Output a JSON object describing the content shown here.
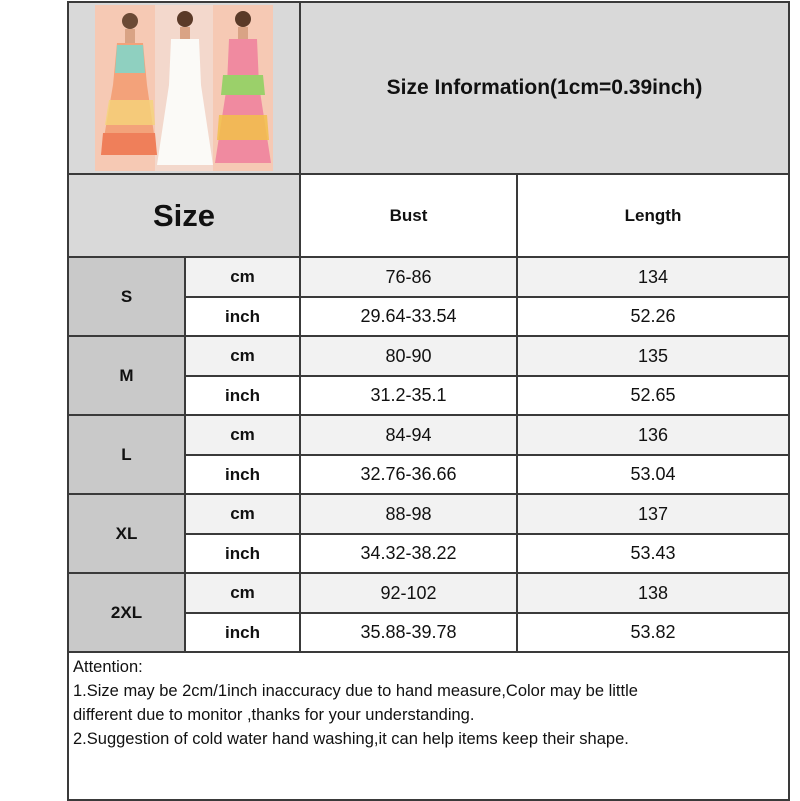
{
  "title": "Size Information(1cm=0.39inch)",
  "size_header": "Size",
  "columns": [
    "Bust",
    "Length"
  ],
  "units": {
    "cm": "cm",
    "inch": "inch"
  },
  "rows": [
    {
      "size": "S",
      "cm": {
        "bust": "76-86",
        "length": "134"
      },
      "inch": {
        "bust": "29.64-33.54",
        "length": "52.26"
      }
    },
    {
      "size": "M",
      "cm": {
        "bust": "80-90",
        "length": "135"
      },
      "inch": {
        "bust": "31.2-35.1",
        "length": "52.65"
      }
    },
    {
      "size": "L",
      "cm": {
        "bust": "84-94",
        "length": "136"
      },
      "inch": {
        "bust": "32.76-36.66",
        "length": "53.04"
      }
    },
    {
      "size": "XL",
      "cm": {
        "bust": "88-98",
        "length": "137"
      },
      "inch": {
        "bust": "34.32-38.22",
        "length": "53.43"
      }
    },
    {
      "size": "2XL",
      "cm": {
        "bust": "92-102",
        "length": "138"
      },
      "inch": {
        "bust": "35.88-39.78",
        "length": "53.82"
      }
    }
  ],
  "attention": {
    "heading": "Attention:",
    "lines": [
      "1.Size may be 2cm/1inch inaccuracy due to hand measure,Color may be little",
      "different due to monitor ,thanks for your understanding.",
      "2.Suggestion of cold water hand washing,it can help items keep their shape."
    ]
  },
  "colors": {
    "header_bg": "#d9d9d9",
    "size_bg": "#c9c9c9",
    "cm_row_bg": "#f2f2f2",
    "border": "#3a3a3a"
  }
}
